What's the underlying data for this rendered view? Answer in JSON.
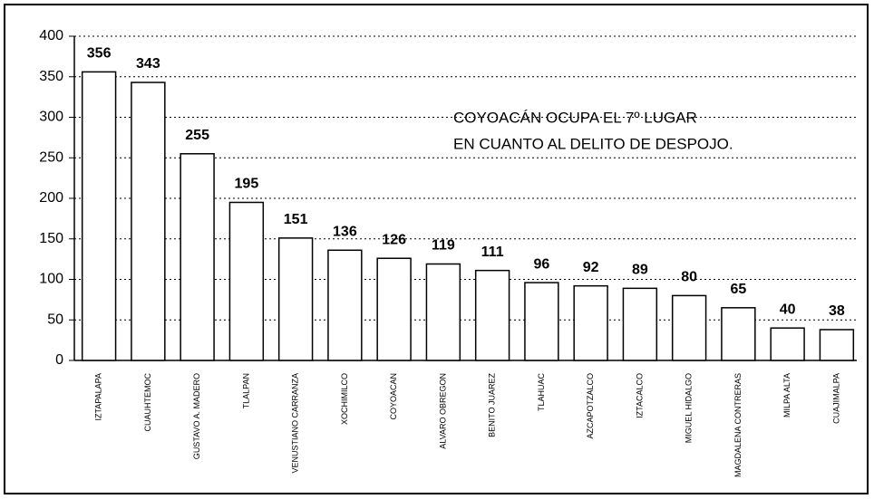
{
  "chart_data": {
    "type": "bar",
    "categories": [
      "IZTAPALAPA",
      "CUAUHTEMOC",
      "GUSTAVO A. MADERO",
      "TLALPAN",
      "VENUSTIANO CARRANZA",
      "XOCHIMILCO",
      "COYOACAN",
      "ALVARO OBREGON",
      "BENITO JUAREZ",
      "TLAHUAC",
      "AZCAPOTZALCO",
      "IZTACALCO",
      "MIGUEL HIDALGO",
      "MAGDALENA CONTRERAS",
      "MILPA ALTA",
      "CUAJIMALPA"
    ],
    "values": [
      356,
      343,
      255,
      195,
      151,
      136,
      126,
      119,
      111,
      96,
      92,
      89,
      80,
      65,
      40,
      38
    ],
    "color": "#ffffff",
    "ylim": [
      0,
      400
    ],
    "yticks": [
      0,
      50,
      100,
      150,
      200,
      250,
      300,
      350,
      400
    ],
    "grid": true,
    "annotation": [
      "COYOACÁN OCUPA EL 7º LUGAR",
      "EN CUANTO AL DELITO DE DESPOJO."
    ]
  }
}
